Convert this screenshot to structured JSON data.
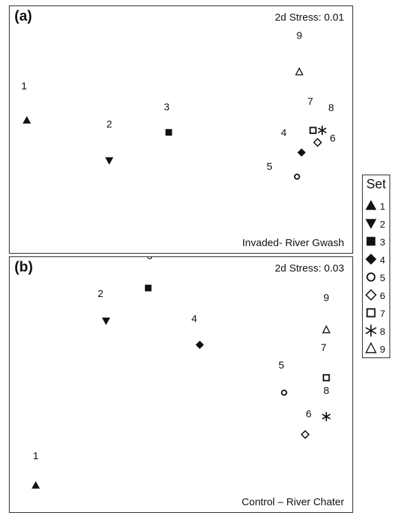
{
  "chart_data": [
    {
      "type": "scatter",
      "panel_label": "(a)",
      "stress": "2d Stress: 0.01",
      "site": "Invaded- River Gwash",
      "points": [
        {
          "label": "1",
          "set": 1,
          "x": 1.0,
          "y": 6.4
        },
        {
          "label": "2",
          "set": 2,
          "x": 2.8,
          "y": 5.4
        },
        {
          "label": "3",
          "set": 3,
          "x": 4.1,
          "y": 6.1
        },
        {
          "label": "4",
          "set": 4,
          "x": 7.0,
          "y": 5.6
        },
        {
          "label": "5",
          "set": 5,
          "x": 6.9,
          "y": 5.0
        },
        {
          "label": "6",
          "set": 6,
          "x": 7.35,
          "y": 5.85
        },
        {
          "label": "7",
          "set": 7,
          "x": 7.25,
          "y": 6.15
        },
        {
          "label": "8",
          "set": 8,
          "x": 7.45,
          "y": 6.15
        },
        {
          "label": "9",
          "set": 9,
          "x": 6.95,
          "y": 7.6
        }
      ]
    },
    {
      "type": "scatter",
      "panel_label": "(b)",
      "stress": "2d Stress: 0.03",
      "site": "Control – River Chater",
      "points": [
        {
          "label": "1",
          "set": 1,
          "x": 1.0,
          "y": 1.2
        },
        {
          "label": "2",
          "set": 2,
          "x": 2.5,
          "y": 6.7
        },
        {
          "label": "3",
          "set": 3,
          "x": 3.4,
          "y": 7.8
        },
        {
          "label": "4",
          "set": 4,
          "x": 4.5,
          "y": 5.9
        },
        {
          "label": "5",
          "set": 5,
          "x": 6.3,
          "y": 4.3
        },
        {
          "label": "6",
          "set": 6,
          "x": 6.75,
          "y": 2.9
        },
        {
          "label": "7",
          "set": 7,
          "x": 7.2,
          "y": 4.8
        },
        {
          "label": "8",
          "set": 8,
          "x": 7.2,
          "y": 3.5
        },
        {
          "label": "9",
          "set": 9,
          "x": 7.2,
          "y": 6.4
        }
      ]
    }
  ],
  "legend": {
    "title": "Set",
    "items": [
      {
        "label": "1",
        "marker": "triangle-up-filled"
      },
      {
        "label": "2",
        "marker": "triangle-down-filled"
      },
      {
        "label": "3",
        "marker": "square-filled"
      },
      {
        "label": "4",
        "marker": "diamond-filled"
      },
      {
        "label": "5",
        "marker": "circle-open"
      },
      {
        "label": "6",
        "marker": "diamond-open"
      },
      {
        "label": "7",
        "marker": "square-open"
      },
      {
        "label": "8",
        "marker": "asterisk"
      },
      {
        "label": "9",
        "marker": "triangle-up-open"
      }
    ]
  }
}
